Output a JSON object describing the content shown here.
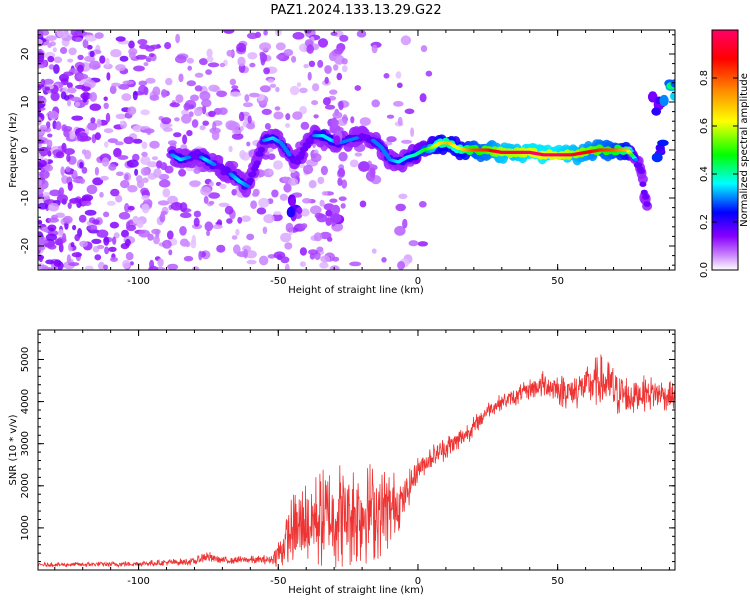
{
  "title": "PAZ1.2024.133.13.29.G22",
  "chart_data": [
    {
      "type": "heatmap",
      "title": "",
      "xlabel": "Height of straight line (km)",
      "ylabel": "Frequency (Hz)",
      "xlim": [
        -136,
        92
      ],
      "ylim": [
        -25,
        25
      ],
      "xticks": [
        -100,
        -50,
        0,
        50
      ],
      "yticks": [
        -20,
        -10,
        0,
        10,
        20
      ],
      "colorbar": {
        "label": "Normalized spectral amplitude",
        "range": [
          0,
          1
        ],
        "ticks": [
          0.0,
          0.2,
          0.4,
          0.6,
          0.8
        ],
        "colors": [
          "#ffffff",
          "#cc88ff",
          "#8800ff",
          "#0000ff",
          "#00ffff",
          "#00ff00",
          "#ffff00",
          "#ff8800",
          "#ff0000",
          "#ff0066"
        ]
      },
      "ridge": {
        "x": [
          -88,
          -85,
          -82,
          -79,
          -76,
          -73,
          -70,
          -67,
          -64,
          -61,
          -58,
          -55,
          -52,
          -49,
          -46,
          -43,
          -40,
          -37,
          -34,
          -31,
          -28,
          -25,
          -22,
          -19,
          -16,
          -13,
          -10,
          -7,
          -4,
          -1,
          2,
          5,
          8,
          11,
          14,
          17,
          20,
          25,
          30,
          35,
          40,
          45,
          50,
          55,
          60,
          65,
          70,
          75,
          78,
          80,
          81,
          82
        ],
        "y": [
          -1,
          -2,
          -1.5,
          -1,
          -2,
          -3,
          -4,
          -5,
          -6.5,
          -7.5,
          -3,
          2,
          2.5,
          1.5,
          -1,
          -2.5,
          1,
          3,
          3,
          2,
          1.5,
          2,
          2.5,
          3,
          2,
          0.5,
          -2,
          -2.5,
          -1.5,
          -1,
          0,
          0.5,
          1.5,
          1.5,
          0.5,
          0,
          0,
          0,
          -0.5,
          -0.5,
          -0.5,
          -1,
          -1,
          -1,
          -0.5,
          0,
          0,
          0,
          -2,
          -5,
          -9,
          -11
        ],
        "amplitude": [
          0.3,
          0.35,
          0.3,
          0.25,
          0.35,
          0.3,
          0.25,
          0.3,
          0.35,
          0.3,
          0.25,
          0.3,
          0.35,
          0.3,
          0.3,
          0.25,
          0.2,
          0.3,
          0.35,
          0.35,
          0.3,
          0.3,
          0.3,
          0.25,
          0.3,
          0.3,
          0.3,
          0.35,
          0.35,
          0.4,
          0.45,
          0.55,
          0.65,
          0.7,
          0.6,
          0.7,
          0.8,
          0.85,
          0.95,
          0.95,
          1.0,
          1.0,
          1.0,
          0.95,
          0.9,
          0.85,
          0.8,
          0.7,
          0.3,
          0.25,
          0.2,
          0.15
        ]
      },
      "blobs": [
        {
          "x": -44,
          "y": -12,
          "amp": 0.2
        },
        {
          "x": -30,
          "y": -13,
          "amp": 0.12
        },
        {
          "x": 86,
          "y": 0,
          "amp": 0.25
        },
        {
          "x": 86,
          "y": 10,
          "amp": 0.2
        },
        {
          "x": 90,
          "y": 12,
          "amp": 0.4
        },
        {
          "x": -30,
          "y": 4,
          "amp": 0.12
        },
        {
          "x": -18,
          "y": -4,
          "amp": 0.1
        }
      ]
    },
    {
      "type": "line",
      "title": "",
      "xlabel": "Height of straight line (km)",
      "ylabel": "SNR (10 * v/v)",
      "xlim": [
        -136,
        92
      ],
      "ylim": [
        0,
        5700
      ],
      "xticks": [
        -100,
        -50,
        0,
        50
      ],
      "yticks": [
        1000,
        2000,
        3000,
        4000,
        5000
      ],
      "color": "#ee3333",
      "envelope": {
        "x": [
          -136,
          -120,
          -100,
          -90,
          -80,
          -76,
          -70,
          -60,
          -52,
          -50,
          -45,
          -40,
          -35,
          -30,
          -25,
          -20,
          -15,
          -10,
          -5,
          0,
          5,
          10,
          15,
          20,
          25,
          30,
          35,
          40,
          45,
          50,
          55,
          60,
          65,
          70,
          75,
          80,
          85,
          92
        ],
        "mean": [
          120,
          130,
          150,
          180,
          200,
          320,
          230,
          240,
          250,
          400,
          900,
          1100,
          1200,
          1300,
          1350,
          1400,
          1400,
          1450,
          1700,
          2400,
          2700,
          2900,
          3100,
          3400,
          3800,
          4000,
          4100,
          4300,
          4400,
          4300,
          4200,
          4400,
          4500,
          4300,
          4100,
          4200,
          4200,
          4100
        ],
        "spread": [
          50,
          60,
          70,
          80,
          90,
          150,
          90,
          100,
          120,
          400,
          900,
          1100,
          1200,
          1300,
          1300,
          1300,
          1200,
          1000,
          500,
          300,
          300,
          300,
          300,
          250,
          200,
          200,
          250,
          250,
          350,
          400,
          450,
          500,
          650,
          700,
          550,
          450,
          400,
          350
        ]
      }
    }
  ]
}
